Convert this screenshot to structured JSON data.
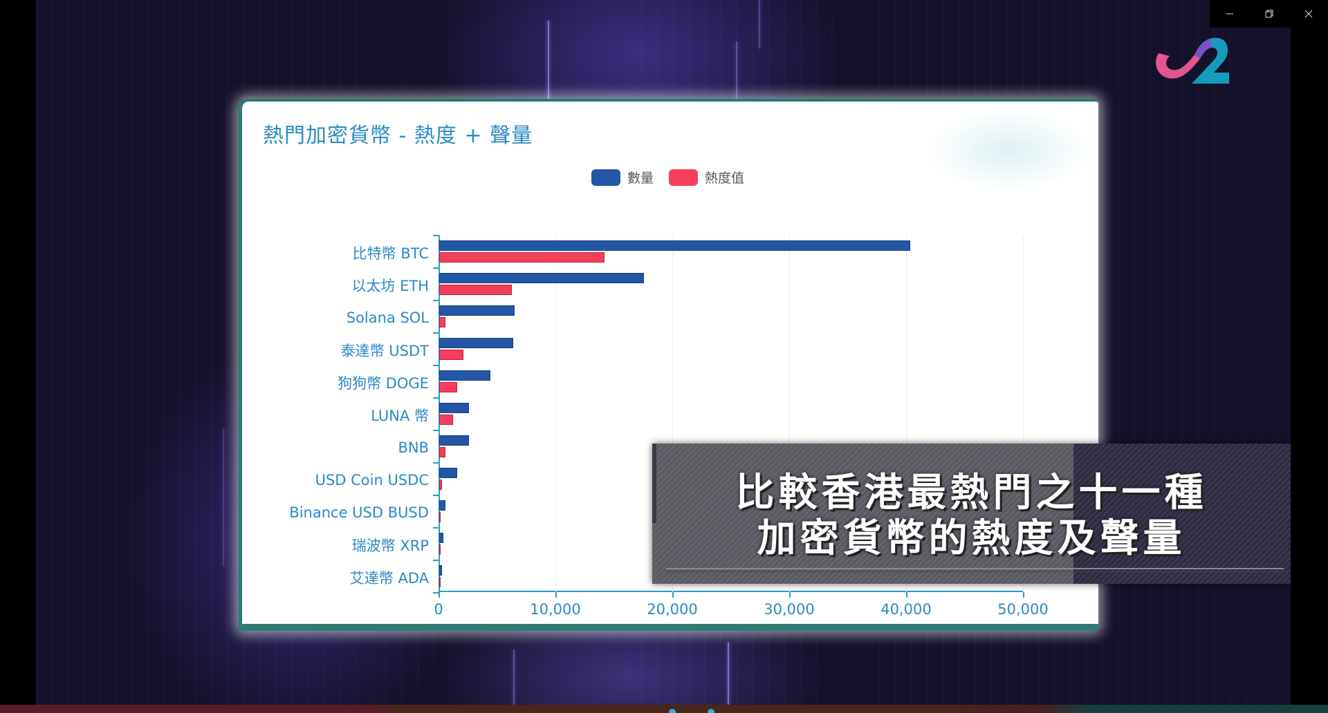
{
  "window": {
    "controls": {
      "minimize": "–",
      "restore": "❐",
      "close": "✕"
    }
  },
  "logo": {
    "text": "J2",
    "colors": {
      "pink": "#e2558f",
      "teal": "#159bbd",
      "purple": "#7a52c8"
    }
  },
  "card": {
    "title": "熱門加密貨幣 - 熱度 + 聲量"
  },
  "legend": [
    {
      "label": "數量",
      "color": "#2357a6"
    },
    {
      "label": "熱度值",
      "color": "#f63e5d"
    }
  ],
  "caption": {
    "line1": "比較香港最熱門之十一種",
    "line2": "加密貨幣的熱度及聲量"
  },
  "x_ticks": [
    "0",
    "10,000",
    "20,000",
    "30,000",
    "40,000",
    "50,000"
  ],
  "chart_data": {
    "type": "bar",
    "orientation": "horizontal",
    "title": "熱門加密貨幣 - 熱度 + 聲量",
    "xlabel": "",
    "ylabel": "",
    "xlim": [
      0,
      50000
    ],
    "x_ticks": [
      0,
      10000,
      20000,
      30000,
      40000,
      50000
    ],
    "grid": true,
    "legend_position": "top-center",
    "categories": [
      "比特幣 BTC",
      "以太坊 ETH",
      "Solana SOL",
      "泰達幣 USDT",
      "狗狗幣 DOGE",
      "LUNA 幣",
      "BNB",
      "USD Coin USDC",
      "Binance USD BUSD",
      "瑞波幣  XRP",
      "艾達幣 ADA"
    ],
    "series": [
      {
        "name": "數量",
        "color": "#2357a6",
        "values": [
          40300,
          17500,
          6450,
          6330,
          4380,
          2540,
          2540,
          1540,
          530,
          350,
          240
        ]
      },
      {
        "name": "熱度值",
        "color": "#f63e5d",
        "values": [
          14140,
          6200,
          530,
          2070,
          1540,
          1180,
          530,
          240,
          20,
          10,
          10
        ]
      }
    ]
  }
}
